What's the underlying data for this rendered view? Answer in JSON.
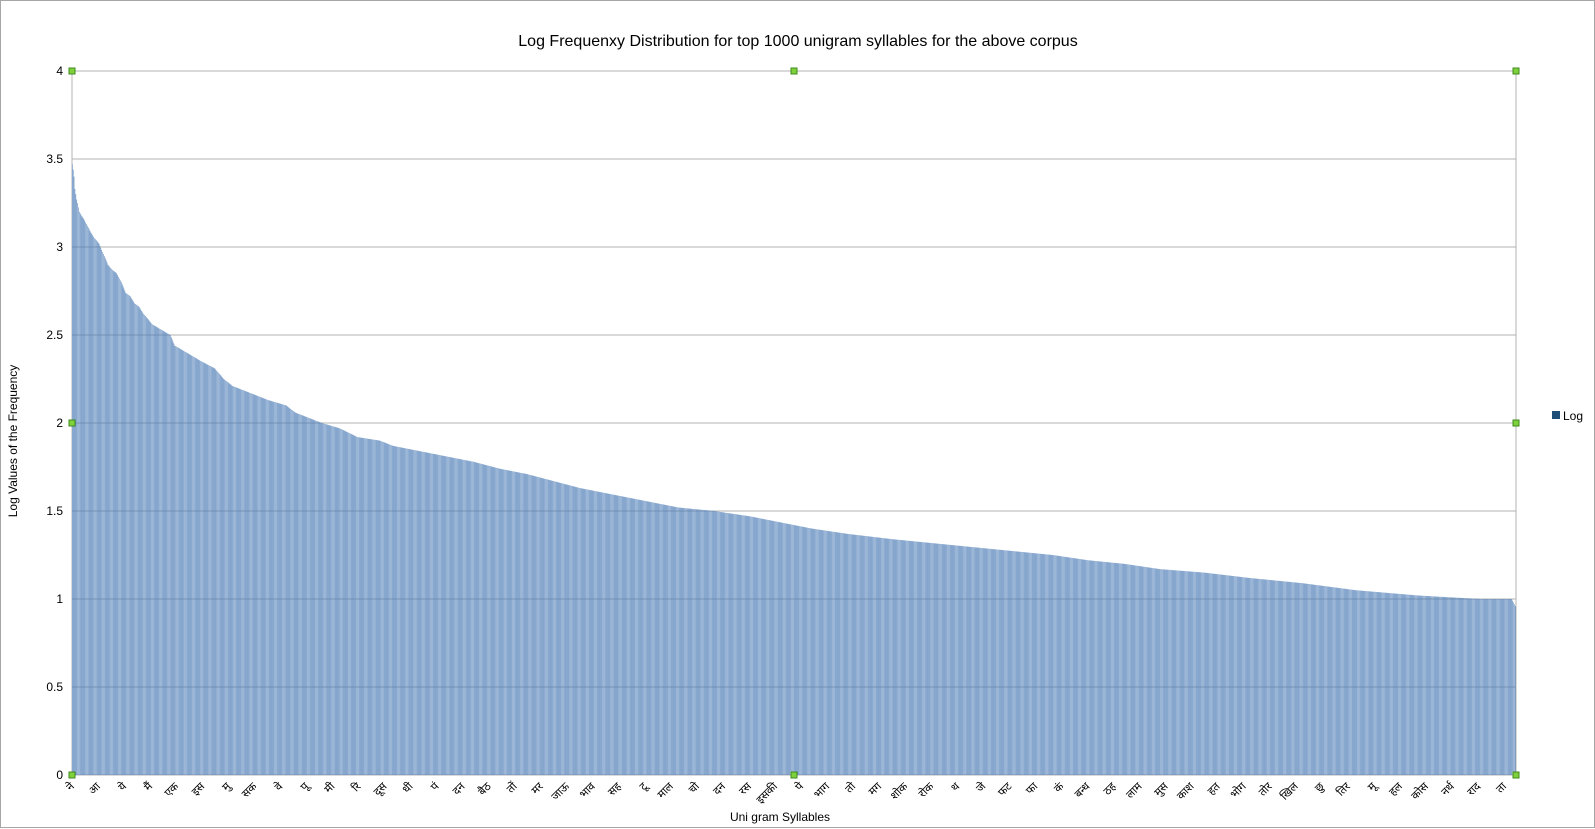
{
  "chart_data": {
    "type": "bar",
    "title": "Log Frequenxy Distribution for top 1000 unigram syllables for the above corpus",
    "xlabel": "Uni gram Syllables",
    "ylabel": "Log Values of the Frequency",
    "ylim": [
      0,
      4
    ],
    "y_ticks": [
      "0",
      "0.5",
      "1",
      "1.5",
      "2",
      "2.5",
      "3",
      "3.5",
      "4"
    ],
    "grid": "horizontal",
    "legend_position": "right",
    "colors": {
      "bar": "#4a7ab5",
      "grid": "#b3b3b3",
      "handle": "#7fd13b"
    },
    "series": [
      {
        "name": "Log"
      }
    ],
    "categories_shown": [
      "ने",
      "आ",
      "ये",
      "मैं",
      "एक",
      "इस",
      "मु",
      "सक",
      "वे",
      "पू",
      "मी",
      "रि",
      "दूस",
      "धी",
      "पं",
      "दन",
      "बैठ",
      "तों",
      "मर",
      "जाऊ",
      "भाव",
      "सह",
      "टू",
      "माल",
      "चो",
      "दन",
      "रस",
      "इसकी",
      "पे",
      "भाग",
      "तो",
      "मग",
      "शोक",
      "रोक",
      "थ",
      "जे",
      "फट",
      "फा",
      "कं",
      "बन्ध",
      "ठह",
      "लाम",
      "मुस",
      "काश",
      "हत",
      "भोग",
      "तोर",
      "खिल",
      "छु",
      "तिर",
      "मू",
      "हल",
      "कोस",
      "नर्थ",
      "राद",
      "ता"
    ],
    "values_profile": [
      [
        0,
        3.47
      ],
      [
        1,
        3.44
      ],
      [
        2,
        3.4
      ],
      [
        3,
        3.33
      ],
      [
        4,
        3.3
      ],
      [
        5,
        3.27
      ],
      [
        6,
        3.25
      ],
      [
        8,
        3.2
      ],
      [
        10,
        3.18
      ],
      [
        13,
        3.16
      ],
      [
        17,
        3.12
      ],
      [
        20,
        3.09
      ],
      [
        25,
        3.05
      ],
      [
        30,
        3.02
      ],
      [
        35,
        2.96
      ],
      [
        40,
        2.9
      ],
      [
        45,
        2.87
      ],
      [
        50,
        2.85
      ],
      [
        55,
        2.8
      ],
      [
        60,
        2.74
      ],
      [
        65,
        2.72
      ],
      [
        70,
        2.68
      ],
      [
        75,
        2.66
      ],
      [
        80,
        2.62
      ],
      [
        85,
        2.59
      ],
      [
        90,
        2.56
      ],
      [
        100,
        2.53
      ],
      [
        110,
        2.5
      ],
      [
        115,
        2.44
      ],
      [
        125,
        2.41
      ],
      [
        135,
        2.38
      ],
      [
        145,
        2.35
      ],
      [
        160,
        2.31
      ],
      [
        170,
        2.25
      ],
      [
        180,
        2.21
      ],
      [
        200,
        2.17
      ],
      [
        220,
        2.13
      ],
      [
        240,
        2.1
      ],
      [
        250,
        2.06
      ],
      [
        265,
        2.03
      ],
      [
        280,
        2.0
      ],
      [
        300,
        1.97
      ],
      [
        320,
        1.92
      ],
      [
        345,
        1.9
      ],
      [
        360,
        1.87
      ],
      [
        390,
        1.84
      ],
      [
        420,
        1.81
      ],
      [
        450,
        1.78
      ],
      [
        480,
        1.74
      ],
      [
        510,
        1.71
      ],
      [
        540,
        1.67
      ],
      [
        570,
        1.63
      ],
      [
        600,
        1.6
      ],
      [
        640,
        1.56
      ],
      [
        680,
        1.52
      ],
      [
        720,
        1.5
      ],
      [
        760,
        1.47
      ],
      [
        800,
        1.43
      ],
      [
        830,
        1.4
      ],
      [
        870,
        1.37
      ],
      [
        920,
        1.34
      ],
      [
        960,
        1.32
      ],
      [
        1000,
        1.3
      ],
      [
        1060,
        1.27
      ],
      [
        1100,
        1.25
      ],
      [
        1140,
        1.22
      ],
      [
        1180,
        1.2
      ],
      [
        1220,
        1.17
      ],
      [
        1270,
        1.15
      ],
      [
        1320,
        1.12
      ],
      [
        1380,
        1.09
      ],
      [
        1440,
        1.05
      ],
      [
        1510,
        1.02
      ],
      [
        1580,
        1.0
      ],
      [
        1615,
        1.0
      ],
      [
        1619,
        0.96
      ]
    ]
  }
}
